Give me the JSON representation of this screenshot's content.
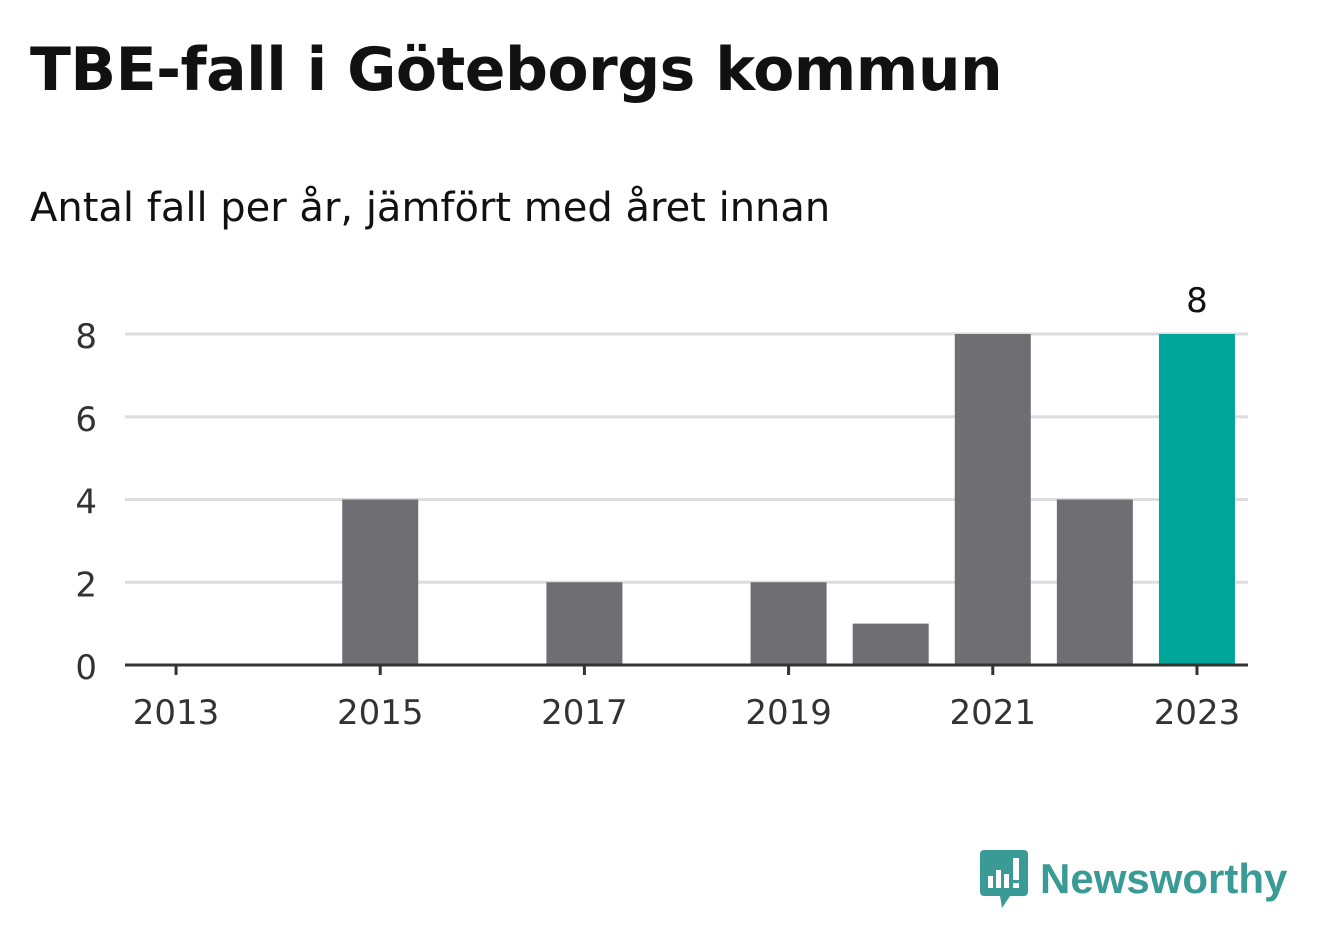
{
  "title": "TBE-fall i Göteborgs kommun",
  "subtitle": "Antal fall per år, jämfört med året innan",
  "brand": {
    "name": "Newsworthy",
    "icon": "newsworthy-logo-icon"
  },
  "colors": {
    "bar": "#6f6e73",
    "highlight": "#00a59a",
    "grid": "#dddddd",
    "axis": "#333333",
    "text": "#333333"
  },
  "chart_data": {
    "type": "bar",
    "categories": [
      "2013",
      "2014",
      "2015",
      "2016",
      "2017",
      "2018",
      "2019",
      "2020",
      "2021",
      "2022",
      "2023"
    ],
    "values": [
      0,
      0,
      4,
      0,
      2,
      0,
      2,
      1,
      8,
      4,
      8
    ],
    "tick_labels": [
      "2013",
      "2015",
      "2017",
      "2019",
      "2021",
      "2023"
    ],
    "yticks": [
      0,
      2,
      4,
      6,
      8
    ],
    "ylim": [
      0,
      8
    ],
    "highlight_category": "2023",
    "highlight_label": "8",
    "grid": true
  }
}
